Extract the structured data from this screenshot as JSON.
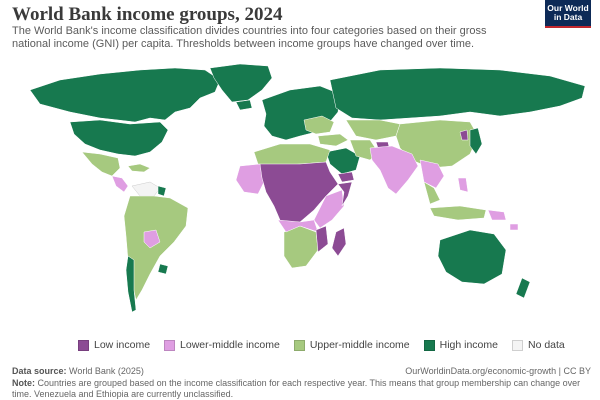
{
  "header": {
    "title": "World Bank income groups, 2024",
    "subtitle": "The World Bank's income classification divides countries into four categories based on their gross national income (GNI) per capita. Thresholds between income groups have changed over time.",
    "logo_line1": "Our World",
    "logo_line2": "in Data"
  },
  "colors": {
    "low": "#8c4b94",
    "lower_middle": "#df9ee2",
    "upper_middle": "#a6c97f",
    "high": "#17794f",
    "no_data": "#f4f4f4"
  },
  "legend": {
    "items": [
      {
        "label": "Low income",
        "color": "#8c4b94"
      },
      {
        "label": "Lower-middle income",
        "color": "#df9ee2"
      },
      {
        "label": "Upper-middle income",
        "color": "#a6c97f"
      },
      {
        "label": "High income",
        "color": "#17794f"
      },
      {
        "label": "No data",
        "color": "#f4f4f4"
      }
    ]
  },
  "footer": {
    "source_label": "Data source:",
    "source_value": "World Bank (2025)",
    "url_license": "OurWorldinData.org/economic-growth | CC BY",
    "note_label": "Note:",
    "note_text": "Countries are grouped based on the income classification for each respective year. This means that group membership can change over time. Venezuela and Ethiopia are currently unclassified."
  }
}
